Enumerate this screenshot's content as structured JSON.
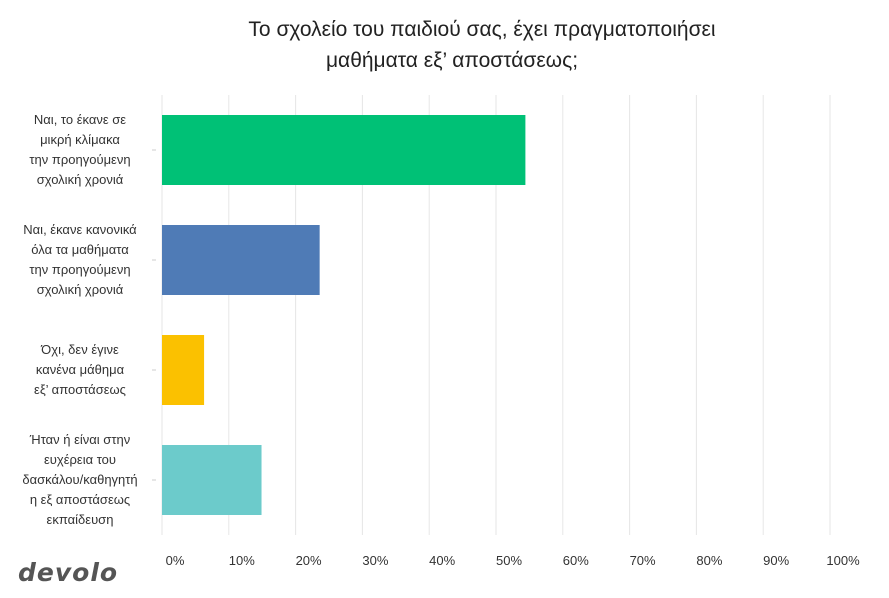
{
  "chart_data": {
    "type": "bar",
    "orientation": "horizontal",
    "title_lines": [
      "Το σχολείο του παιδιού σας, έχει πραγματοποιήσει",
      "μαθήματα εξ’ αποστάσεως;"
    ],
    "categories": [
      {
        "lines": [
          "Ναι, το έκανε σε",
          "μικρή κλίμακα",
          "την προηγούμενη",
          "σχολική χρονιά"
        ]
      },
      {
        "lines": [
          "Ναι, έκανε κανονικά",
          "όλα τα μαθήματα",
          "την προηγούμενη",
          "σχολική χρονιά"
        ]
      },
      {
        "lines": [
          "Όχι, δεν έγινε",
          "κανένα μάθημα",
          "εξ’ αποστάσεως"
        ]
      },
      {
        "lines": [
          "Ήταν ή είναι στην",
          "ευχέρεια του",
          "δασκάλου/καθηγητή",
          "η εξ αποστάσεως",
          "εκπαίδευση"
        ]
      }
    ],
    "values": [
      54.4,
      23.6,
      6.3,
      14.9
    ],
    "colors": [
      "#00c176",
      "#4f7bb6",
      "#fbc100",
      "#6ccbcb"
    ],
    "xlim": [
      0,
      100
    ],
    "x_ticks": [
      "0%",
      "10%",
      "20%",
      "30%",
      "40%",
      "50%",
      "60%",
      "70%",
      "80%",
      "90%",
      "100%"
    ],
    "grid": true,
    "unit": "%"
  },
  "brand": {
    "logo_text": "devolo"
  }
}
